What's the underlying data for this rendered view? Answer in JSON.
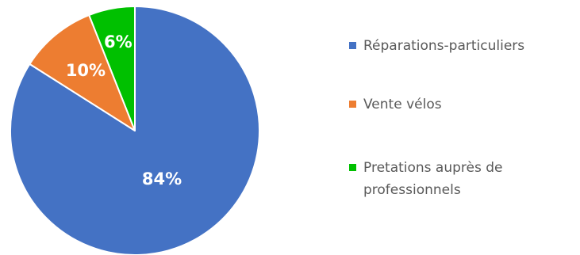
{
  "chart_data": {
    "type": "pie",
    "title": "",
    "slices": [
      {
        "name": "Réparations-particuliers",
        "value": 84,
        "label": "84%",
        "color": "#4472C4"
      },
      {
        "name": "Vente vélos",
        "value": 10,
        "label": "10%",
        "color": "#ED7D31"
      },
      {
        "name": "Pretations auprès de professionnels",
        "value": 6,
        "label": "6%",
        "color": "#00C000"
      }
    ],
    "start_angle_deg": 0,
    "direction": "clockwise",
    "legend_position": "right"
  },
  "legend": {
    "items": [
      {
        "label": "Réparations-particuliers"
      },
      {
        "label": "Vente vélos"
      },
      {
        "label": "Pretations auprès de professionnels"
      }
    ]
  }
}
